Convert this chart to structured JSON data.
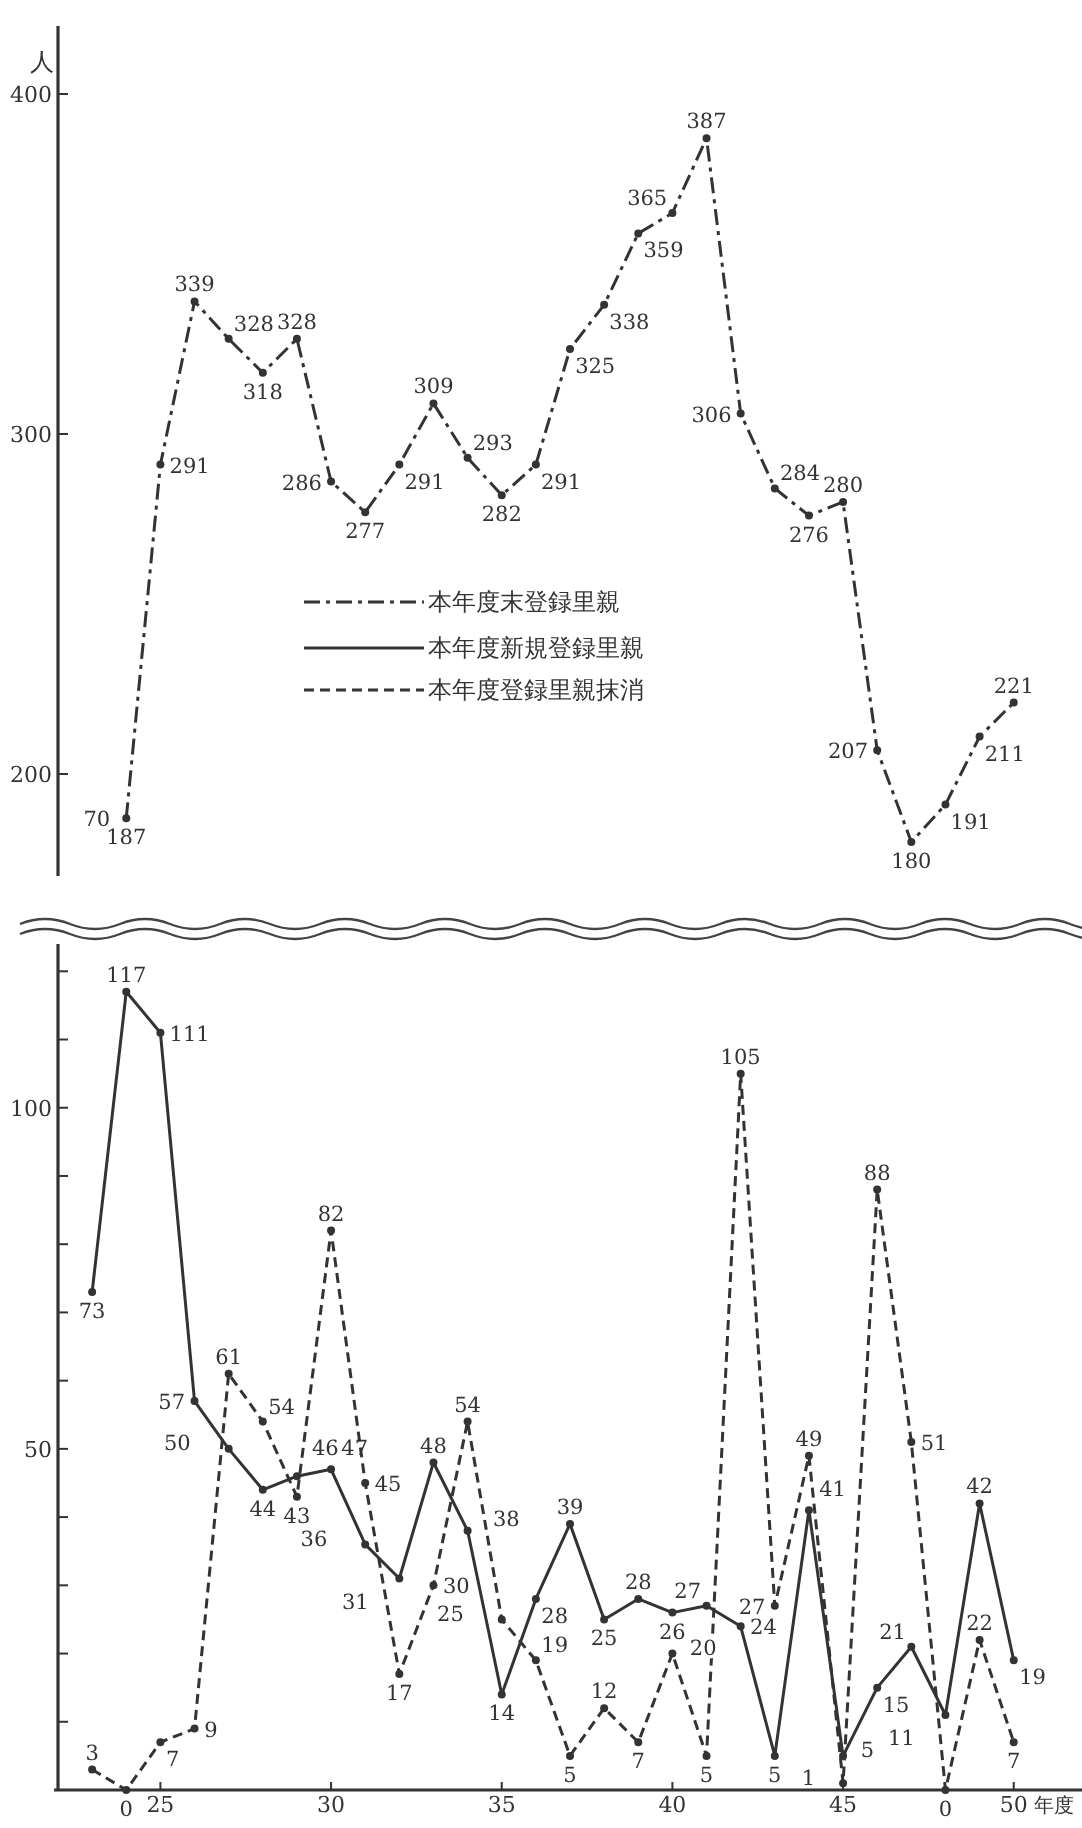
{
  "chart_data": [
    {
      "type": "line",
      "ylabel": "人",
      "x": [
        24,
        25,
        26,
        27,
        28,
        29,
        30,
        31,
        32,
        33,
        34,
        35,
        36,
        37,
        38,
        39,
        40,
        41,
        42,
        43,
        44,
        45,
        46,
        47,
        48,
        49,
        50
      ],
      "ylim": [
        170,
        420
      ],
      "yticks": [
        200,
        300,
        400
      ],
      "tick_labels": "y",
      "data_labels": true,
      "legend": "center",
      "marker": "circle",
      "annotations": [
        "70"
      ],
      "series": [
        {
          "name": "本年度末登録里親",
          "color": "#333333",
          "line_style": "dashdot",
          "values": [
            187,
            291,
            339,
            328,
            318,
            328,
            286,
            277,
            291,
            309,
            293,
            282,
            291,
            325,
            338,
            359,
            365,
            387,
            306,
            284,
            276,
            280,
            207,
            180,
            191,
            211,
            221
          ]
        }
      ]
    },
    {
      "type": "line",
      "xlabel": "年度",
      "x": [
        23,
        24,
        25,
        26,
        27,
        28,
        29,
        30,
        31,
        32,
        33,
        34,
        35,
        36,
        37,
        38,
        39,
        40,
        41,
        42,
        43,
        44,
        45,
        46,
        47,
        48,
        49,
        50
      ],
      "xlim": [
        22,
        52
      ],
      "xticks": [
        25,
        30,
        35,
        40,
        45,
        50
      ],
      "ylim": [
        0,
        124
      ],
      "yticks": [
        {
          "value": 10,
          "label": null
        },
        {
          "value": 20,
          "label": null
        },
        {
          "value": 30,
          "label": null
        },
        {
          "value": 40,
          "label": null
        },
        50,
        {
          "value": 60,
          "label": null
        },
        {
          "value": 70,
          "label": null
        },
        {
          "value": 80,
          "label": null
        },
        {
          "value": 90,
          "label": null
        },
        100,
        {
          "value": 110,
          "label": null
        },
        {
          "value": 120,
          "label": null
        }
      ],
      "data_labels": true,
      "legend": "top",
      "marker": "circle",
      "series": [
        {
          "name": "本年度新規登録里親",
          "color": "#333333",
          "line_style": "solid",
          "values": [
            73,
            117,
            111,
            57,
            50,
            44,
            46,
            47,
            36,
            31,
            48,
            38,
            14,
            28,
            39,
            25,
            28,
            26,
            27,
            24,
            5,
            41,
            5,
            15,
            21,
            11,
            42,
            19
          ]
        },
        {
          "name": "本年度登録里親抹消",
          "color": "#333333",
          "line_style": "dashed",
          "values": [
            3,
            0,
            7,
            9,
            61,
            54,
            43,
            82,
            45,
            17,
            30,
            54,
            25,
            19,
            5,
            12,
            7,
            20,
            5,
            105,
            27,
            49,
            1,
            88,
            51,
            0,
            22,
            7
          ]
        }
      ]
    }
  ]
}
